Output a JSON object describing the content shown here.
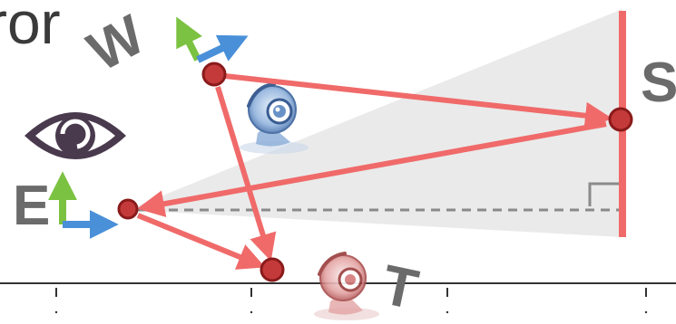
{
  "title_fragment": "ror",
  "labels": {
    "world": "W",
    "screen": "S",
    "eye": "E",
    "target": "T"
  },
  "colors": {
    "arrow": "#f06a6a",
    "point_fill": "#c43a3a",
    "point_stroke": "#8a1a1a",
    "screen_bar": "#f06a6a",
    "axis_x": "#4a90d9",
    "axis_y": "#7cc242",
    "frustum": "#e6e6e6",
    "dashed": "#8a8a8a",
    "text": "#6b6b6b",
    "eye_icon": "#4a3a4e"
  },
  "icons": [
    "eye-icon",
    "webcam-icon",
    "webcam-icon-red"
  ]
}
